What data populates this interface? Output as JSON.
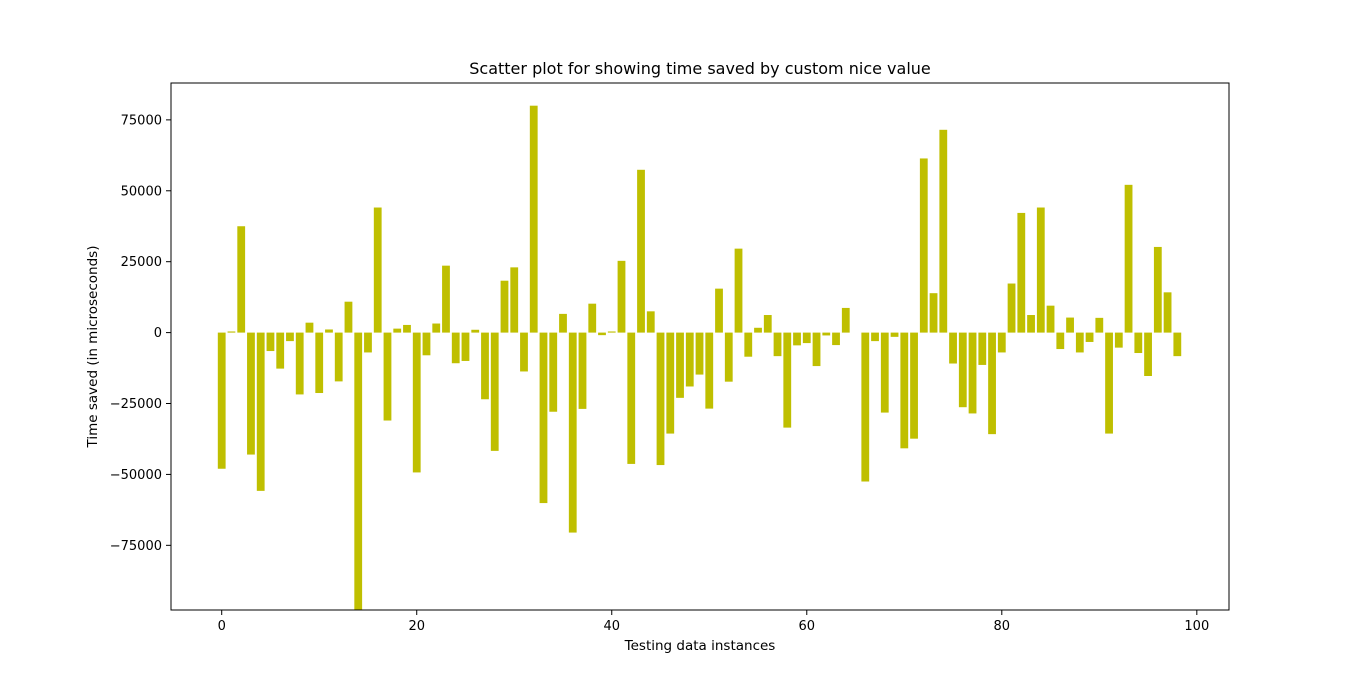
{
  "chart_data": {
    "type": "bar",
    "title": "Scatter plot for showing time saved by custom nice value",
    "xlabel": "Testing data instances",
    "ylabel": "Time saved (in microseconds)",
    "xlim": [
      -5.2,
      103.3
    ],
    "ylim": [
      -97800,
      88000
    ],
    "xticks": [
      0,
      20,
      40,
      60,
      80,
      100
    ],
    "yticks": [
      -75000,
      -50000,
      -25000,
      0,
      25000,
      50000,
      75000
    ],
    "bar_color": "#bfbf00",
    "grid": false,
    "legend": "none",
    "x": [
      0,
      1,
      2,
      3,
      4,
      5,
      6,
      7,
      8,
      9,
      10,
      11,
      12,
      13,
      14,
      15,
      16,
      17,
      18,
      19,
      20,
      21,
      22,
      23,
      24,
      25,
      26,
      27,
      28,
      29,
      30,
      31,
      32,
      33,
      34,
      35,
      36,
      37,
      38,
      39,
      40,
      41,
      42,
      43,
      44,
      45,
      46,
      47,
      48,
      49,
      50,
      51,
      52,
      53,
      54,
      55,
      56,
      57,
      58,
      59,
      60,
      61,
      62,
      63,
      64,
      65,
      66,
      67,
      68,
      69,
      70,
      71,
      72,
      73,
      74,
      75,
      76,
      77,
      78,
      79,
      80,
      81,
      82,
      83,
      84,
      85,
      86,
      87,
      88,
      89,
      90,
      91,
      92,
      93,
      94,
      95,
      96,
      97,
      98
    ],
    "values": [
      -48000,
      400,
      37500,
      -43000,
      -55800,
      -6500,
      -12700,
      -3000,
      -21800,
      3500,
      -21300,
      1100,
      -17200,
      10900,
      -98000,
      -7000,
      44100,
      -31000,
      1400,
      2700,
      -49300,
      -8000,
      3200,
      23600,
      -10800,
      -10000,
      1000,
      -23500,
      -41700,
      18300,
      23000,
      -13700,
      80000,
      -60100,
      -27900,
      6600,
      -70500,
      -26900,
      10200,
      -900,
      400,
      25300,
      -46300,
      57400,
      7500,
      -46700,
      -35600,
      -23000,
      -19000,
      -14800,
      -26800,
      15500,
      -17300,
      29600,
      -8500,
      1700,
      6200,
      -8300,
      -33500,
      -4500,
      -3700,
      -11800,
      -1000,
      -4400,
      8700,
      0,
      -52500,
      -3000,
      -28200,
      -1500,
      -40800,
      -37400,
      61400,
      13900,
      71500,
      -10900,
      -26300,
      -28500,
      -11400,
      -35800,
      -7000,
      17300,
      42200,
      6200,
      44100,
      9500,
      -5800,
      5300,
      -7000,
      -3300,
      5200,
      -35600,
      -5300,
      52100,
      -7200,
      -15300,
      30200,
      14200,
      -8300
    ]
  }
}
